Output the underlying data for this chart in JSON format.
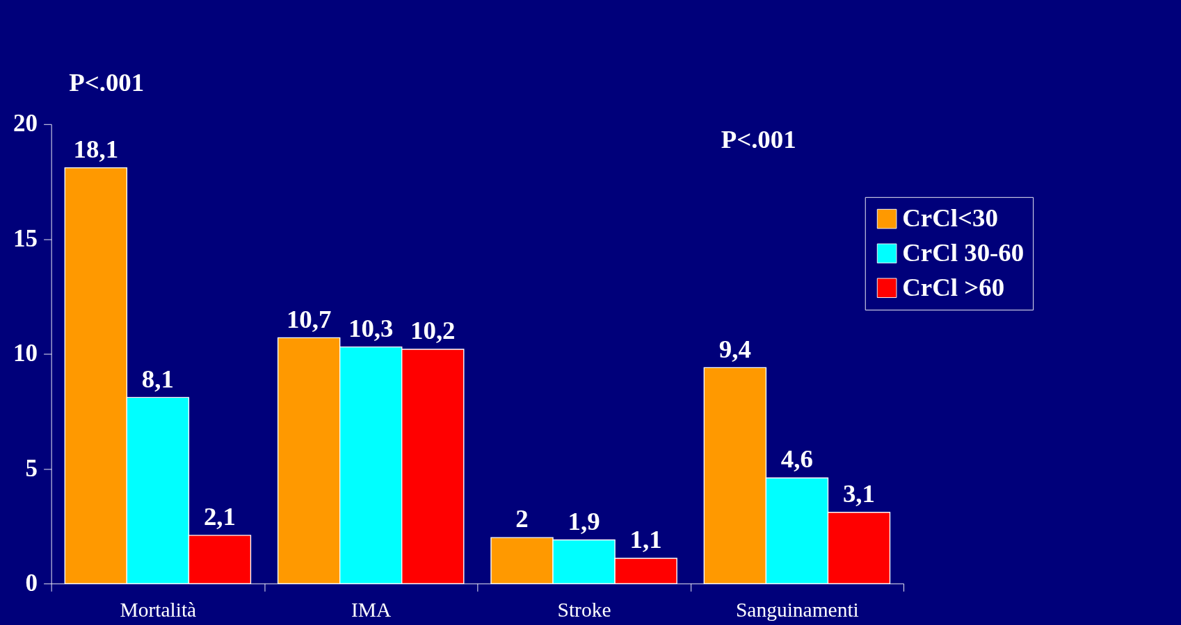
{
  "chart_data": {
    "type": "bar",
    "categories": [
      "Mortalità",
      "IMA",
      "Stroke",
      "Sanguinamenti"
    ],
    "series": [
      {
        "name": "CrCl<30",
        "color": "#ff9900",
        "values": [
          18.1,
          10.7,
          2,
          9.4
        ],
        "value_labels": [
          "18,1",
          "10,7",
          "2",
          "9,4"
        ]
      },
      {
        "name": "CrCl 30-60",
        "color": "#00ffff",
        "values": [
          8.1,
          10.3,
          1.9,
          4.6
        ],
        "value_labels": [
          "8,1",
          "10,3",
          "1,9",
          "4,6"
        ]
      },
      {
        "name": "CrCl >60",
        "color": "#ff0000",
        "values": [
          2.1,
          10.2,
          1.1,
          3.1
        ],
        "value_labels": [
          "2,1",
          "10,2",
          "1,1",
          "3,1"
        ]
      }
    ],
    "annotations": [
      "P<.001",
      "P<.001"
    ],
    "ylim": [
      0,
      20
    ],
    "yticks": [
      0,
      5,
      10,
      15,
      20
    ],
    "grid": false,
    "legend": "top right"
  }
}
